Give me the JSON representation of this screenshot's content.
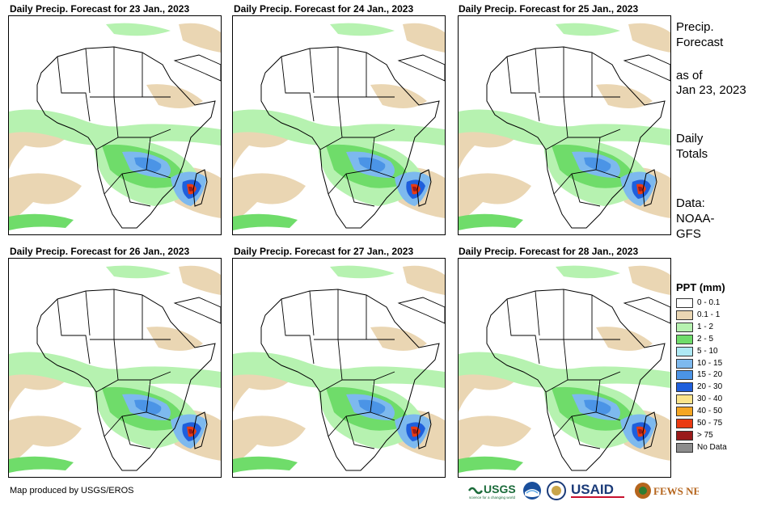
{
  "panels": [
    {
      "title": "Daily Precip. Forecast for 23 Jan., 2023"
    },
    {
      "title": "Daily Precip. Forecast for 24 Jan., 2023"
    },
    {
      "title": "Daily Precip. Forecast for 25 Jan., 2023"
    },
    {
      "title": "Daily Precip. Forecast for 26 Jan., 2023"
    },
    {
      "title": "Daily Precip. Forecast for 27 Jan., 2023"
    },
    {
      "title": "Daily Precip. Forecast for 28 Jan., 2023"
    }
  ],
  "sidebar": {
    "heading_line1": "Precip.",
    "heading_line2": "Forecast",
    "asof_line1": "as of",
    "asof_line2": "Jan 23, 2023",
    "totals_line1": "Daily",
    "totals_line2": "Totals",
    "data_line1": "Data:",
    "data_line2": "NOAA-",
    "data_line3": "GFS"
  },
  "legend": {
    "title": "PPT (mm)",
    "items": [
      {
        "label": "0 - 0.1",
        "color": "#ffffff"
      },
      {
        "label": "0.1 - 1",
        "color": "#ead6b3"
      },
      {
        "label": "1 - 2",
        "color": "#b6f2b0"
      },
      {
        "label": "2 - 5",
        "color": "#6fdc6a"
      },
      {
        "label": "5 - 10",
        "color": "#aee9f4"
      },
      {
        "label": "10 - 15",
        "color": "#7db9ee"
      },
      {
        "label": "15 - 20",
        "color": "#4b94e6"
      },
      {
        "label": "20 - 30",
        "color": "#1f5fdc"
      },
      {
        "label": "30 - 40",
        "color": "#fbe48a"
      },
      {
        "label": "40 - 50",
        "color": "#f5a623"
      },
      {
        "label": "50 - 75",
        "color": "#ea3a12"
      },
      {
        "label": "> 75",
        "color": "#9a1a1a"
      },
      {
        "label": "No Data",
        "color": "#8c8c8c"
      }
    ]
  },
  "credit": "Map produced by USGS/EROS",
  "logos": {
    "usgs": "USGS",
    "usgs_tagline": "science for a changing world",
    "usaid": "USAID",
    "fewsnet": "FEWS NET"
  },
  "colors": {
    "sand": "#ead6b3",
    "light_green": "#b6f2b0",
    "green": "#6fdc6a",
    "blue": "#4b94e6",
    "dark_blue": "#1f5fdc",
    "red": "#ea3a12",
    "dark_red": "#9a1a1a"
  }
}
